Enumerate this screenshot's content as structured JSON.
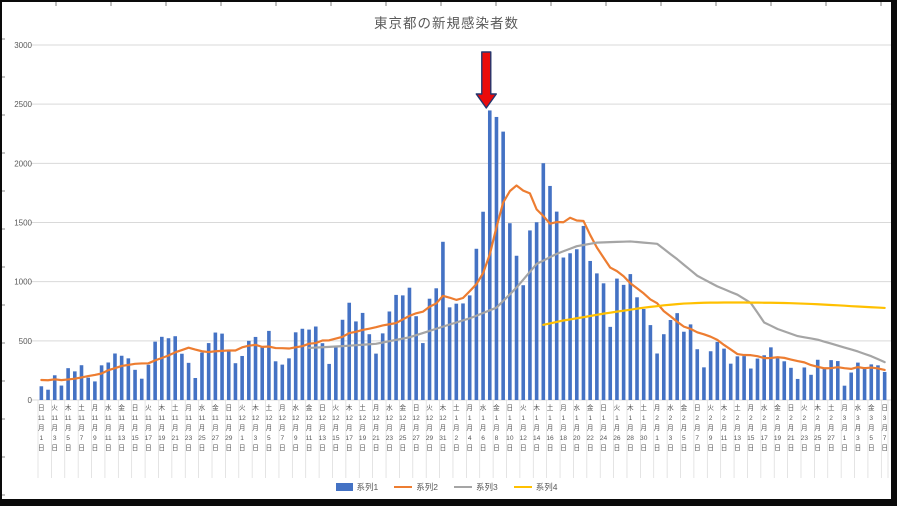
{
  "page": {
    "title": "東京都の新規感染者数"
  },
  "colors": {
    "background": "#FFFFFF",
    "frame_border": "#0A0A0A",
    "gridline": "#D9D9D9",
    "axis_text": "#595959",
    "bar_blue": "#4472C4",
    "line_orange": "#ED7D31",
    "line_gray": "#A5A5A5",
    "line_yellow": "#FFC000",
    "arrow_fill": "#EA0B0B",
    "arrow_outline": "#24366E"
  },
  "chart_data": {
    "type": "bar",
    "title": "東京都の新規感染者数",
    "xlabel": "",
    "ylabel": "",
    "ylim": [
      0,
      3000
    ],
    "y_ticks": [
      0,
      500,
      1000,
      1500,
      2000,
      2500,
      3000
    ],
    "grid": true,
    "legend_position": "bottom",
    "n_days": 127,
    "date_range": "2020-11-01 to 2021-03-07",
    "month_char": "月",
    "day_char": "日",
    "x_ticks": [
      [
        "日",
        "11",
        "1"
      ],
      [
        "火",
        "11",
        "3"
      ],
      [
        "木",
        "11",
        "5"
      ],
      [
        "土",
        "11",
        "7"
      ],
      [
        "月",
        "11",
        "9"
      ],
      [
        "水",
        "11",
        "11"
      ],
      [
        "金",
        "11",
        "13"
      ],
      [
        "日",
        "11",
        "15"
      ],
      [
        "火",
        "11",
        "17"
      ],
      [
        "木",
        "11",
        "19"
      ],
      [
        "土",
        "11",
        "21"
      ],
      [
        "月",
        "11",
        "23"
      ],
      [
        "水",
        "11",
        "25"
      ],
      [
        "金",
        "11",
        "27"
      ],
      [
        "日",
        "11",
        "29"
      ],
      [
        "火",
        "12",
        "1"
      ],
      [
        "木",
        "12",
        "3"
      ],
      [
        "土",
        "12",
        "5"
      ],
      [
        "月",
        "12",
        "7"
      ],
      [
        "水",
        "12",
        "9"
      ],
      [
        "金",
        "12",
        "11"
      ],
      [
        "日",
        "12",
        "13"
      ],
      [
        "火",
        "12",
        "15"
      ],
      [
        "木",
        "12",
        "17"
      ],
      [
        "土",
        "12",
        "19"
      ],
      [
        "月",
        "12",
        "21"
      ],
      [
        "水",
        "12",
        "23"
      ],
      [
        "金",
        "12",
        "25"
      ],
      [
        "日",
        "12",
        "27"
      ],
      [
        "火",
        "12",
        "29"
      ],
      [
        "木",
        "12",
        "31"
      ],
      [
        "土",
        "1",
        "2"
      ],
      [
        "月",
        "1",
        "4"
      ],
      [
        "水",
        "1",
        "6"
      ],
      [
        "金",
        "1",
        "8"
      ],
      [
        "日",
        "1",
        "10"
      ],
      [
        "火",
        "1",
        "12"
      ],
      [
        "木",
        "1",
        "14"
      ],
      [
        "土",
        "1",
        "16"
      ],
      [
        "月",
        "1",
        "18"
      ],
      [
        "水",
        "1",
        "20"
      ],
      [
        "金",
        "1",
        "22"
      ],
      [
        "日",
        "1",
        "24"
      ],
      [
        "火",
        "1",
        "26"
      ],
      [
        "木",
        "1",
        "28"
      ],
      [
        "土",
        "1",
        "30"
      ],
      [
        "月",
        "2",
        "1"
      ],
      [
        "水",
        "2",
        "3"
      ],
      [
        "金",
        "2",
        "5"
      ],
      [
        "日",
        "2",
        "7"
      ],
      [
        "火",
        "2",
        "9"
      ],
      [
        "木",
        "2",
        "11"
      ],
      [
        "土",
        "2",
        "13"
      ],
      [
        "月",
        "2",
        "15"
      ],
      [
        "水",
        "2",
        "17"
      ],
      [
        "金",
        "2",
        "19"
      ],
      [
        "日",
        "2",
        "21"
      ],
      [
        "火",
        "2",
        "23"
      ],
      [
        "木",
        "2",
        "25"
      ],
      [
        "土",
        "2",
        "27"
      ],
      [
        "月",
        "3",
        "1"
      ],
      [
        "水",
        "3",
        "3"
      ],
      [
        "金",
        "3",
        "5"
      ],
      [
        "日",
        "3",
        "7"
      ]
    ],
    "series": [
      {
        "name": "系列1",
        "type": "bar",
        "color": "#4472C4",
        "start_index": 0,
        "values": [
          116,
          87,
          209,
          122,
          269,
          242,
          294,
          189,
          157,
          293,
          317,
          393,
          374,
          352,
          255,
          180,
          298,
          493,
          534,
          522,
          539,
          391,
          314,
          186,
          401,
          481,
          570,
          561,
          418,
          311,
          372,
          500,
          533,
          449,
          584,
          327,
          299,
          352,
          572,
          602,
          595,
          621,
          480,
          305,
          460,
          678,
          822,
          664,
          736,
          556,
          392,
          563,
          748,
          888,
          884,
          949,
          708,
          481,
          856,
          944,
          1337,
          783,
          814,
          816,
          884,
          1278,
          1591,
          2447,
          2392,
          2268,
          1494,
          1219,
          970,
          1433,
          1502,
          2001,
          1809,
          1592,
          1204,
          1240,
          1274,
          1471,
          1175,
          1070,
          986,
          618,
          1026,
          973,
          1064,
          868,
          769,
          633,
          393,
          556,
          676,
          734,
          577,
          639,
          429,
          276,
          412,
          491,
          434,
          307,
          369,
          371,
          266,
          350,
          378,
          445,
          353,
          327,
          272,
          178,
          275,
          213,
          340,
          270,
          337,
          329,
          121,
          232,
          316,
          279,
          301,
          293,
          237
        ]
      },
      {
        "name": "系列2",
        "type": "line",
        "color": "#ED7D31",
        "start_index": 0,
        "values": [
          169,
          167,
          175,
          168,
          174,
          180,
          191,
          202,
          212,
          224,
          252,
          269,
          288,
          296,
          306,
          309,
          310,
          335,
          355,
          376,
          403,
          422,
          442,
          426,
          412,
          405,
          412,
          415,
          419,
          418,
          445,
          459,
          466,
          449,
          452,
          439,
          438,
          435,
          445,
          455,
          476,
          481,
          503,
          504,
          519,
          534,
          566,
          576,
          592,
          603,
          615,
          630,
          640,
          650,
          681,
          711,
          733,
          746,
          788,
          816,
          880,
          865,
          846,
          862,
          919,
          979,
          1072,
          1230,
          1460,
          1668,
          1765,
          1813,
          1769,
          1746,
          1611,
          1555,
          1490,
          1504,
          1502,
          1540,
          1517,
          1513,
          1395,
          1289,
          1203,
          1119,
          1089,
          1046,
          987,
          944,
          901,
          850,
          818,
          751,
          708,
          661,
          620,
          601,
          572,
          555,
          535,
          508,
          465,
          427,
          388,
          380,
          379,
          370,
          354,
          355,
          362,
          356,
          342,
          329,
          318,
          295,
          280,
          268,
          269,
          277,
          269,
          263,
          278,
          269,
          274,
          267,
          254
        ]
      },
      {
        "name": "系列3",
        "type": "line",
        "color": "#A5A5A5",
        "start_index": 40,
        "values": [
          440,
          443,
          446,
          449,
          452,
          455,
          459,
          463,
          467,
          471,
          475,
          486,
          497,
          508,
          519,
          530,
          548,
          566,
          584,
          602,
          620,
          638,
          655,
          673,
          690,
          712,
          735,
          758,
          780,
          837,
          893,
          950,
          1017,
          1083,
          1150,
          1178,
          1207,
          1235,
          1257,
          1278,
          1300,
          1310,
          1320,
          1330,
          1332,
          1334,
          1336,
          1338,
          1340,
          1335,
          1330,
          1325,
          1320,
          1277,
          1233,
          1190,
          1143,
          1097,
          1050,
          1020,
          990,
          960,
          937,
          913,
          890,
          855,
          820,
          738,
          655,
          628,
          600,
          580,
          560,
          540,
          530,
          520,
          510,
          493,
          477,
          460,
          443,
          427,
          410,
          390,
          370,
          345,
          320
        ]
      },
      {
        "name": "系列4",
        "type": "line",
        "color": "#FFC000",
        "start_index": 75,
        "values": [
          635,
          647,
          660,
          672,
          681,
          691,
          700,
          710,
          720,
          730,
          738,
          747,
          755,
          763,
          772,
          780,
          787,
          793,
          800,
          805,
          810,
          815,
          817,
          820,
          822,
          823,
          823,
          824,
          824,
          824,
          824,
          823,
          823,
          822,
          822,
          821,
          820,
          818,
          816,
          814,
          812,
          809,
          806,
          803,
          800,
          797,
          793,
          790,
          787,
          784,
          781,
          778
        ]
      }
    ],
    "annotation": {
      "shape": "block-arrow-down",
      "at_index": 67,
      "points_at_value": 2447
    }
  }
}
